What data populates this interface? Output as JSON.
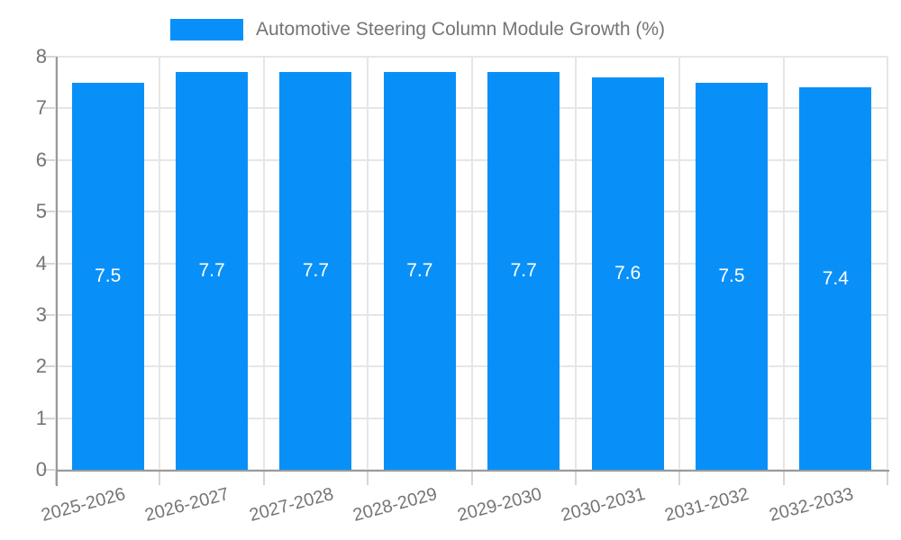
{
  "chart_data": {
    "type": "bar",
    "title": "Automotive Steering Column Module Growth (%)",
    "categories": [
      "2025-2026",
      "2026-2027",
      "2027-2028",
      "2028-2029",
      "2029-2030",
      "2030-2031",
      "2031-2032",
      "2032-2033"
    ],
    "series": [
      {
        "name": "Automotive Steering Column Module Growth (%)",
        "values": [
          7.5,
          7.7,
          7.7,
          7.7,
          7.7,
          7.6,
          7.5,
          7.4
        ]
      }
    ],
    "value_labels": [
      "7.5",
      "7.7",
      "7.7",
      "7.7",
      "7.7",
      "7.6",
      "7.5",
      "7.4"
    ],
    "xlabel": "",
    "ylabel": "",
    "ylim": [
      0,
      8
    ],
    "yticks": [
      0,
      1,
      2,
      3,
      4,
      5,
      6,
      7,
      8
    ],
    "grid": true,
    "legend_position": "top",
    "colors": {
      "bar": "#0990f8",
      "bar_label": "#ffffff",
      "axis_text": "#757575",
      "gridline": "#e6e6e6",
      "tick": "#d6d6d6",
      "axis_line": "#9a9a9a",
      "background": "#ffffff"
    }
  }
}
